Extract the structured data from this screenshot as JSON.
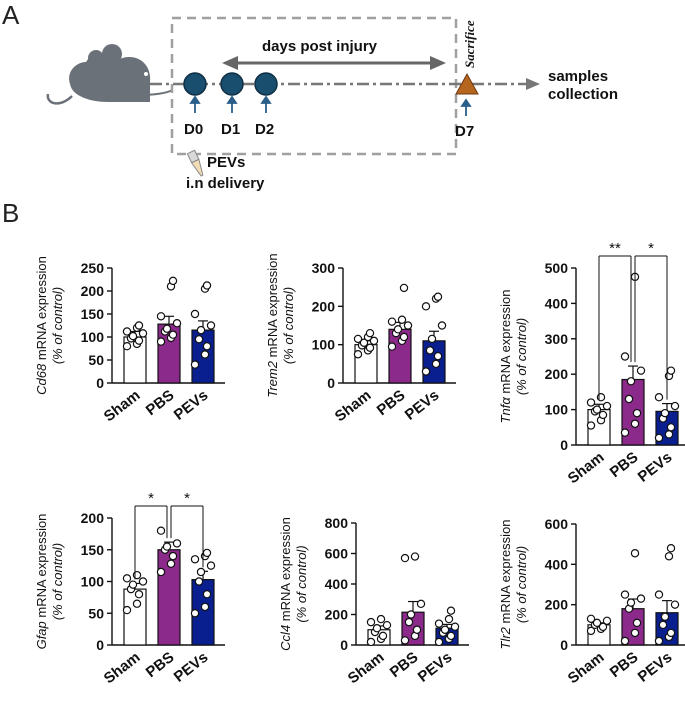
{
  "panel_a": {
    "letter": "A",
    "days_label": "days post injury",
    "sacrifice_label": "Sacrifice",
    "samples_line1": "samples",
    "samples_line2": "collection",
    "days": [
      "D0",
      "D1",
      "D2"
    ],
    "day_final": "D7",
    "pevs_line1": "PEVs",
    "pevs_line2": "i.n delivery",
    "colors": {
      "dot": "#1a4e6e",
      "triangle": "#b5651d",
      "mouse": "#6b7179",
      "box": "#a0a0a0"
    }
  },
  "panel_b": {
    "letter": "B",
    "colors": {
      "sham": "#ffffff",
      "pbs": "#8b2a8a",
      "pevs": "#0a1f8f"
    }
  },
  "chart_data": [
    {
      "type": "bar",
      "gene": "Cd68",
      "ylabel_suffix": " mRNA expression",
      "ylabel2": "(% of control)",
      "categories": [
        "Sham",
        "PBS",
        "PEVs"
      ],
      "values": [
        100,
        128,
        115
      ],
      "errors": [
        12,
        17,
        20
      ],
      "ylim": [
        0,
        250
      ],
      "ticks": [
        "0",
        "50",
        "100",
        "150",
        "200",
        "250"
      ],
      "points": [
        [
          80,
          85,
          92,
          97,
          102,
          108,
          112,
          120,
          125
        ],
        [
          90,
          98,
          105,
          112,
          118,
          130,
          145,
          210,
          222
        ],
        [
          40,
          62,
          80,
          95,
          115,
          125,
          150,
          205,
          212
        ]
      ],
      "significance": []
    },
    {
      "type": "bar",
      "gene": "Trem2",
      "ylabel_suffix": " mRNA expression",
      "ylabel2": "(% of control)",
      "categories": [
        "Sham",
        "PBS",
        "PEVs"
      ],
      "values": [
        100,
        140,
        110
      ],
      "errors": [
        10,
        18,
        25
      ],
      "ylim": [
        0,
        300
      ],
      "ticks": [
        "0",
        "100",
        "200",
        "300"
      ],
      "points": [
        [
          75,
          85,
          92,
          98,
          105,
          110,
          115,
          120,
          130
        ],
        [
          95,
          110,
          120,
          130,
          140,
          150,
          160,
          165,
          248
        ],
        [
          30,
          50,
          70,
          85,
          115,
          150,
          200,
          220,
          225
        ]
      ],
      "significance": []
    },
    {
      "type": "bar",
      "gene": "Tnfα",
      "ylabel_suffix": " mRNA expression",
      "ylabel2": "(% of control)",
      "categories": [
        "Sham",
        "PBS",
        "PEVs"
      ],
      "values": [
        100,
        185,
        95
      ],
      "errors": [
        15,
        38,
        22
      ],
      "ylim": [
        0,
        500
      ],
      "ticks": [
        "0",
        "100",
        "200",
        "300",
        "400",
        "500"
      ],
      "points": [
        [
          55,
          70,
          85,
          95,
          100,
          110,
          120,
          135
        ],
        [
          35,
          60,
          90,
          130,
          180,
          210,
          250,
          475
        ],
        [
          20,
          30,
          50,
          75,
          90,
          110,
          135,
          195,
          210
        ]
      ],
      "significance": [
        {
          "from": 0,
          "to": 1,
          "label": "**",
          "level": 0
        },
        {
          "from": 1,
          "to": 2,
          "label": "*",
          "level": 0
        }
      ]
    },
    {
      "type": "bar",
      "gene": "Gfap",
      "ylabel_suffix": " mRNA expression",
      "ylabel2": "(% of control)",
      "categories": [
        "Sham",
        "PBS",
        "PEVs"
      ],
      "values": [
        88,
        150,
        103
      ],
      "errors": [
        9,
        12,
        13
      ],
      "ylim": [
        0,
        200
      ],
      "ticks": [
        "0",
        "50",
        "100",
        "150",
        "200"
      ],
      "points": [
        [
          55,
          65,
          80,
          88,
          95,
          100,
          105,
          110
        ],
        [
          115,
          128,
          140,
          150,
          155,
          160,
          180
        ],
        [
          50,
          60,
          80,
          100,
          115,
          125,
          135,
          140,
          145
        ]
      ],
      "significance": [
        {
          "from": 0,
          "to": 1,
          "label": "*",
          "level": 0
        },
        {
          "from": 1,
          "to": 2,
          "label": "*",
          "level": 0
        }
      ]
    },
    {
      "type": "bar",
      "gene": "Ccl4",
      "ylabel_suffix": " mRNA expression",
      "ylabel2": "(% of control)",
      "categories": [
        "Sham",
        "PBS",
        "PEVs"
      ],
      "values": [
        100,
        215,
        110
      ],
      "errors": [
        25,
        70,
        25
      ],
      "ylim": [
        0,
        800
      ],
      "ticks": [
        "0",
        "200",
        "400",
        "600",
        "800"
      ],
      "points": [
        [
          20,
          40,
          60,
          85,
          110,
          130,
          150,
          170
        ],
        [
          30,
          60,
          100,
          150,
          200,
          270,
          570,
          580
        ],
        [
          20,
          40,
          60,
          80,
          100,
          120,
          140,
          170,
          225
        ]
      ],
      "significance": []
    },
    {
      "type": "bar",
      "gene": "Tlr2",
      "ylabel_suffix": " mRNA expression",
      "ylabel2": "(% of control)",
      "categories": [
        "Sham",
        "PBS",
        "PEVs"
      ],
      "values": [
        100,
        180,
        160
      ],
      "errors": [
        10,
        48,
        60
      ],
      "ylim": [
        0,
        600
      ],
      "ticks": [
        "0",
        "200",
        "400",
        "600"
      ],
      "points": [
        [
          70,
          80,
          90,
          100,
          110,
          120,
          130
        ],
        [
          20,
          60,
          110,
          180,
          210,
          230,
          250,
          455
        ],
        [
          20,
          40,
          60,
          100,
          140,
          200,
          250,
          440,
          480
        ]
      ],
      "significance": []
    }
  ]
}
